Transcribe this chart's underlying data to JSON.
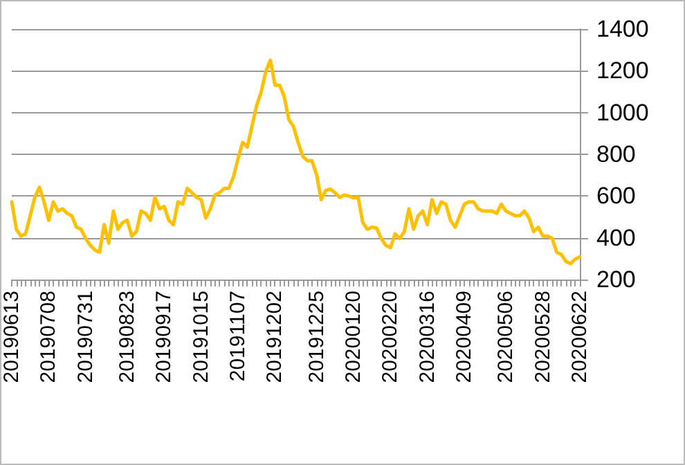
{
  "chart_data": {
    "type": "line",
    "categories": [
      "20190613",
      null,
      null,
      null,
      null,
      null,
      null,
      null,
      "20190708",
      null,
      null,
      null,
      null,
      null,
      null,
      null,
      "20190731",
      null,
      null,
      null,
      null,
      null,
      null,
      null,
      null,
      "20190823",
      null,
      null,
      null,
      null,
      null,
      null,
      null,
      "20190917",
      null,
      null,
      null,
      null,
      null,
      null,
      null,
      "20191015",
      null,
      null,
      null,
      null,
      null,
      null,
      null,
      "20191107",
      null,
      null,
      null,
      null,
      null,
      null,
      null,
      "20191202",
      null,
      null,
      null,
      null,
      null,
      null,
      null,
      null,
      "20191225",
      null,
      null,
      null,
      null,
      null,
      null,
      null,
      "20200120",
      null,
      null,
      null,
      null,
      null,
      null,
      null,
      "20200220",
      null,
      null,
      null,
      null,
      null,
      null,
      null,
      "20200316",
      null,
      null,
      null,
      null,
      null,
      null,
      null,
      "20200409",
      null,
      null,
      null,
      null,
      null,
      null,
      null,
      null,
      "20200506",
      null,
      null,
      null,
      null,
      null,
      null,
      null,
      "20200528",
      null,
      null,
      null,
      null,
      null,
      null,
      null,
      "20200622"
    ],
    "series": [
      {
        "color": "#ffc000",
        "values": [
          572,
          441,
          408,
          419,
          506,
          594,
          642,
          572,
          484,
          572,
          528,
          539,
          517,
          506,
          451,
          441,
          397,
          364,
          342,
          331,
          463,
          375,
          528,
          441,
          473,
          484,
          408,
          430,
          528,
          517,
          484,
          594,
          539,
          550,
          484,
          463,
          572,
          561,
          637,
          616,
          594,
          583,
          495,
          539,
          605,
          616,
          637,
          637,
          692,
          780,
          857,
          835,
          933,
          1032,
          1098,
          1196,
          1251,
          1131,
          1131,
          1076,
          966,
          933,
          857,
          791,
          769,
          769,
          703,
          583,
          627,
          633,
          616,
          594,
          605,
          600,
          591,
          594,
          473,
          441,
          451,
          446,
          397,
          364,
          353,
          419,
          397,
          430,
          539,
          441,
          506,
          528,
          463,
          583,
          517,
          572,
          561,
          484,
          451,
          506,
          561,
          572,
          572,
          539,
          528,
          528,
          528,
          517,
          561,
          528,
          517,
          506,
          506,
          528,
          495,
          430,
          451,
          408,
          408,
          397,
          331,
          320,
          287,
          276,
          298,
          309
        ]
      }
    ],
    "ylim": [
      200,
      1400
    ],
    "yticks": [
      200,
      400,
      600,
      800,
      1000,
      1200,
      1400
    ],
    "grid": "y",
    "marker": "none",
    "line_style": "solid"
  }
}
